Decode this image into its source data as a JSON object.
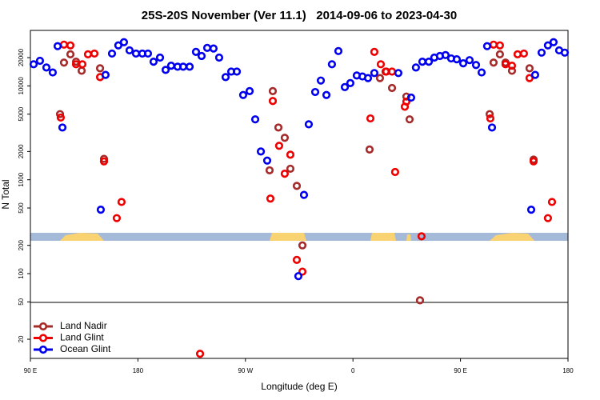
{
  "chart_data": {
    "type": "scatter",
    "title": "25S-20S November (Ver 11.1)   2014-09-06 to 2023-04-30",
    "x_label": "Longitude (deg E)",
    "y_label": "N Total",
    "log_scale": true,
    "xlim": [
      90,
      540
    ],
    "ylim": [
      12.5,
      39000
    ],
    "xticks": [
      {
        "value": 90,
        "label": "90 E"
      },
      180,
      {
        "value": 270,
        "label": "90 W"
      },
      {
        "value": 360,
        "label": "0"
      },
      {
        "value": 450,
        "label": "90 E"
      },
      {
        "value": 540,
        "label": "180"
      }
    ],
    "yticks": [
      20,
      50,
      100,
      200,
      500,
      1000,
      2000,
      5000,
      10000,
      20000
    ],
    "legend": "lower left",
    "series": [
      {
        "name": "Land Nadir",
        "color": "#a52a2a",
        "x": [
          114.8,
          118.1,
          123.5,
          128.2,
          132.9,
          148.3,
          151.6,
          290.2,
          292.9,
          297.6,
          302.9,
          307.6,
          313,
          317.7,
          373.9,
          382.6,
          388,
          392.7,
          404.7,
          407.4,
          416.1,
          474.4,
          477.7,
          483,
          487.7,
          493.1,
          507.8,
          511.2
        ],
        "values": [
          5000,
          17700,
          21700,
          18100,
          14500,
          15400,
          1670,
          1260,
          8800,
          3600,
          2800,
          1310,
          860,
          200,
          2100,
          12100,
          14200,
          9500,
          7700,
          4400,
          52,
          5000,
          17700,
          21700,
          17700,
          14500,
          15400,
          1640
        ]
      },
      {
        "name": "Land Glint",
        "color": "#ee0000",
        "x": [
          115.4,
          118.1,
          123.5,
          128.2,
          133.5,
          138.2,
          143.6,
          148.3,
          151.6,
          162.3,
          166.3,
          232,
          290.9,
          292.9,
          298.2,
          302.9,
          307.6,
          313,
          317.7,
          374.6,
          377.9,
          383.3,
          387.3,
          392.7,
          395.3,
          403.4,
          404.7,
          417.4,
          475,
          477.7,
          483,
          487.7,
          493.1,
          497.8,
          503.1,
          507.8,
          511.2,
          523.2,
          526.6
        ],
        "values": [
          4600,
          27500,
          27000,
          17000,
          17000,
          21700,
          22100,
          12400,
          1570,
          390,
          580,
          14,
          630,
          6900,
          2300,
          1160,
          1850,
          140,
          105,
          4500,
          23000,
          17000,
          14200,
          14200,
          1210,
          6000,
          6800,
          250,
          4500,
          27500,
          27000,
          17000,
          16400,
          21700,
          22100,
          12100,
          1570,
          390,
          580
        ]
      },
      {
        "name": "Ocean Glint",
        "color": "#0000ee",
        "x": [
          92.7,
          98,
          103.4,
          108.7,
          112.8,
          116.8,
          148.9,
          152.9,
          158.3,
          163.6,
          168.3,
          173,
          178.4,
          183.7,
          188.4,
          193.1,
          198.5,
          203.2,
          207.8,
          213.2,
          217.9,
          223.3,
          228.6,
          233.3,
          238,
          243.3,
          248,
          253.4,
          258.1,
          262.8,
          268.1,
          273.5,
          278.2,
          282.9,
          288.2,
          314.3,
          319,
          323,
          328.4,
          333.1,
          337.8,
          342.4,
          347.8,
          353.2,
          357.8,
          363.2,
          367.9,
          372.6,
          377.9,
          398,
          408.7,
          412.7,
          418.1,
          423.5,
          428.1,
          432.8,
          437.5,
          442.2,
          446.9,
          452.3,
          457.6,
          463,
          467.7,
          472.3,
          476.4,
          509.2,
          512.5,
          517.9,
          523.2,
          527.9,
          532.6,
          537.3
        ],
        "values": [
          17000,
          18500,
          15700,
          13900,
          26500,
          3600,
          480,
          13100,
          22100,
          27000,
          29200,
          23900,
          22100,
          22100,
          22100,
          18100,
          20000,
          14800,
          16400,
          16000,
          16000,
          16000,
          23000,
          20800,
          25400,
          25000,
          20000,
          12400,
          14200,
          14200,
          8000,
          8800,
          4400,
          2000,
          1600,
          94,
          690,
          3900,
          8600,
          11400,
          8000,
          17000,
          23500,
          9700,
          10700,
          12900,
          12600,
          12100,
          13700,
          13700,
          7500,
          15700,
          18100,
          18100,
          20000,
          20800,
          21300,
          19600,
          19200,
          17400,
          18800,
          16700,
          13900,
          26500,
          3600,
          480,
          13100,
          22600,
          27000,
          29200,
          23900,
          22600
        ]
      }
    ]
  }
}
